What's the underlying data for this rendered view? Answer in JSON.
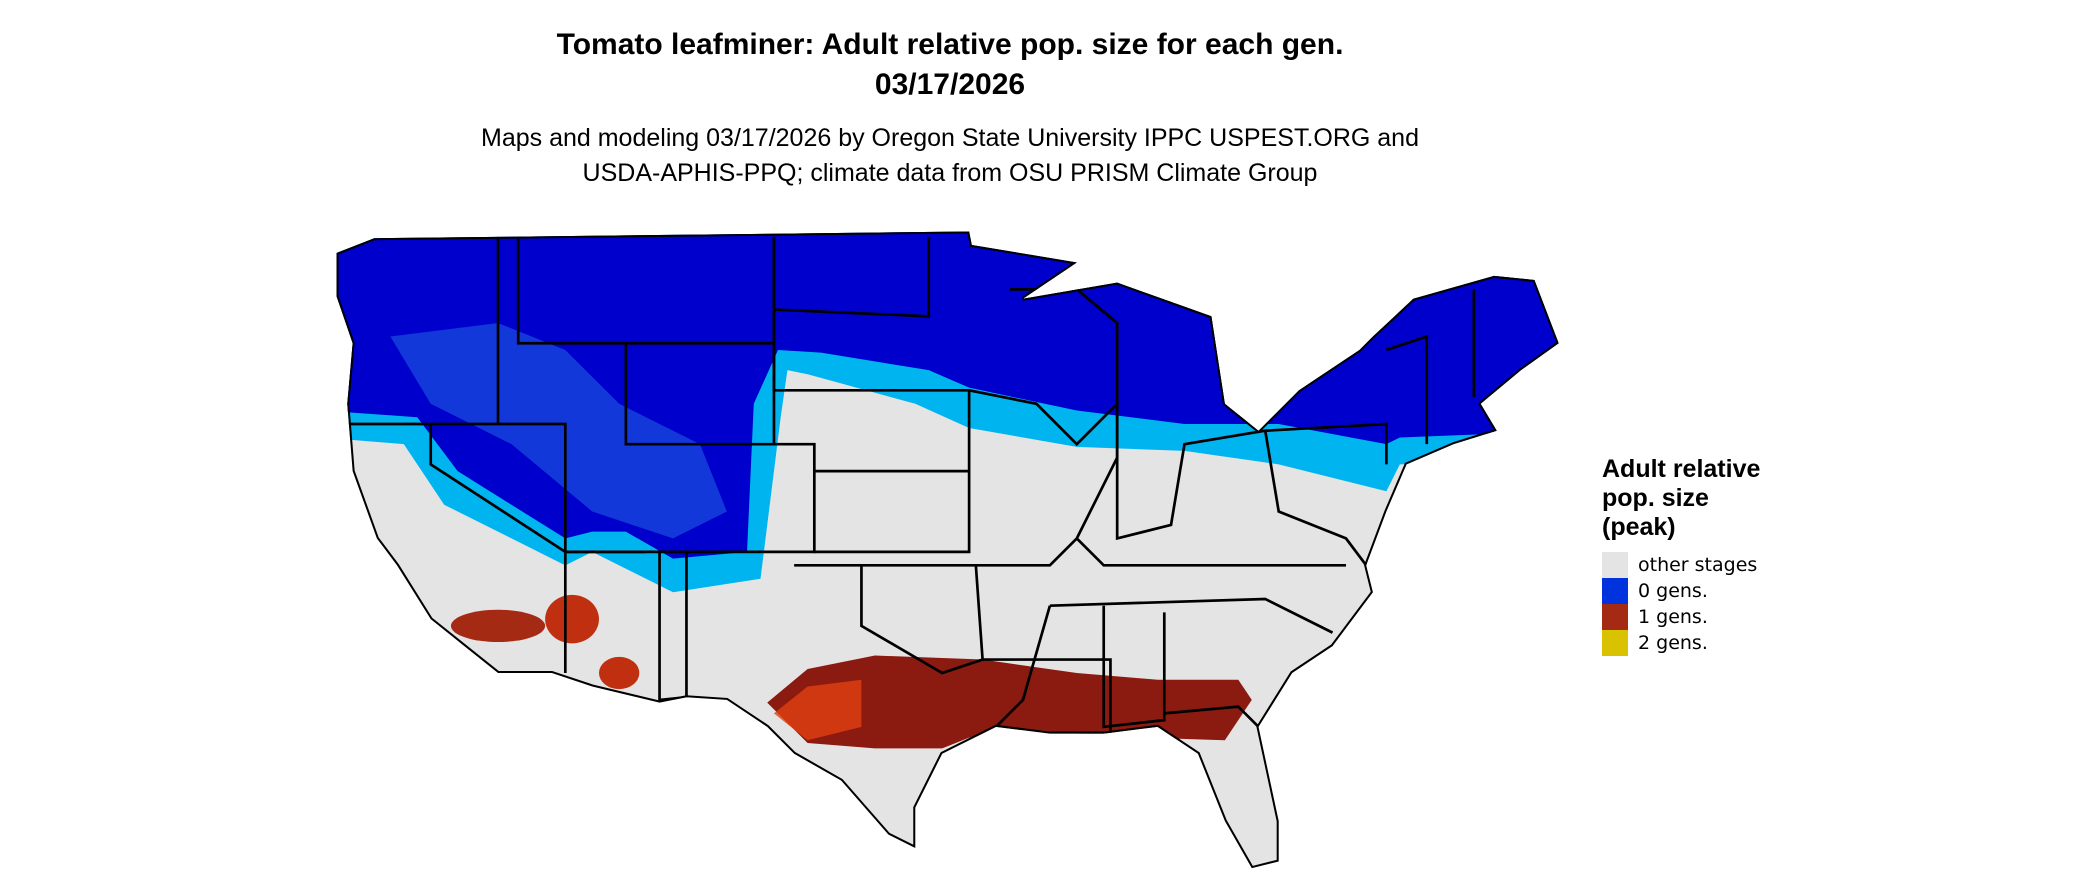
{
  "title": {
    "line1": "Tomato leafminer: Adult relative pop. size for each gen.",
    "line2": "03/17/2026"
  },
  "subtitle": {
    "line1": "Maps and modeling 03/17/2026 by Oregon State University IPPC USPEST.ORG and",
    "line2": "USDA-APHIS-PPQ; climate data from OSU PRISM Climate Group"
  },
  "legend": {
    "title": [
      "Adult relative",
      "pop. size",
      "(peak)"
    ],
    "items": [
      {
        "label": "other stages",
        "color": "#e4e4e4"
      },
      {
        "label": "0 gens.",
        "color": "#0033dd"
      },
      {
        "label": "1 gens.",
        "color": "#a52a14"
      },
      {
        "label": "2 gens.",
        "color": "#d9c200"
      }
    ]
  },
  "map_colors": {
    "background_land": "#e4e4e4",
    "deep_blue": "#0000cc",
    "light_blue": "#00b4f0",
    "dark_red": "#8b1a10",
    "orange_red": "#e04010",
    "yellow": "#d9c200",
    "state_lines": "#000000"
  }
}
